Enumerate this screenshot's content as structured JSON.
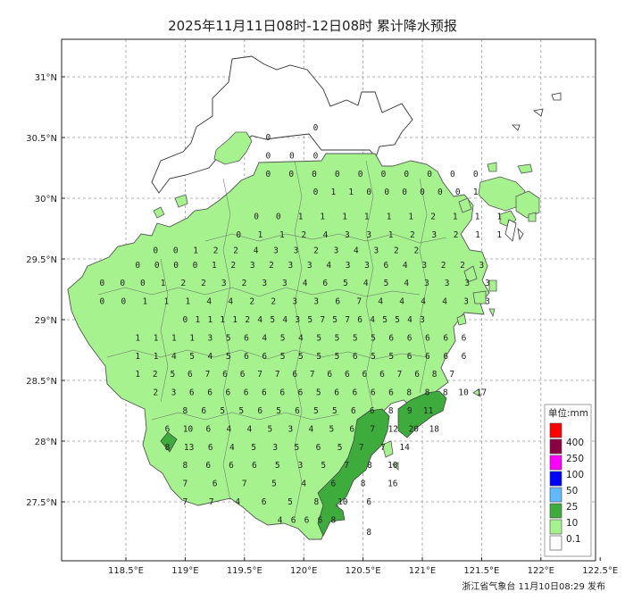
{
  "title": "2025年11月11日08时-12日08时 累计降水预报",
  "footer": "浙江省气象台 11月10日08:29 发布",
  "axes": {
    "lon_ticks": [
      "118.5°E",
      "119°E",
      "119.5°E",
      "120°E",
      "120.5°E",
      "121°E",
      "121.5°E",
      "122°E",
      "122.5°E"
    ],
    "lat_ticks": [
      "31°N",
      "30.5°N",
      "30°N",
      "29.5°N",
      "29°N",
      "28.5°N",
      "28°N",
      "27.5°N"
    ]
  },
  "legend": {
    "unit_label": "单位:mm",
    "items": [
      {
        "label": "400",
        "color": "#ff0000"
      },
      {
        "label": "250",
        "color": "#8b0045"
      },
      {
        "label": "100",
        "color": "#ff00ff"
      },
      {
        "label": "50",
        "color": "#0000ff"
      },
      {
        "label": "25",
        "color": "#63b8ff"
      },
      {
        "label": "10",
        "color": "#3dac3d"
      },
      {
        "label": "0.1",
        "color": "#a6f28f"
      },
      {
        "label": "",
        "color": "#ffffff"
      }
    ]
  },
  "colors": {
    "light_rain": "#a6f28f",
    "moderate_rain": "#3dac3d",
    "border": "#555555"
  },
  "chart_data": {
    "type": "heatmap",
    "description_unit": "mm",
    "grid_rows": [
      {
        "lat": 30.58,
        "values": [
          0
        ]
      },
      {
        "lat": 30.5,
        "values": [
          0
        ]
      },
      {
        "lat": 30.35,
        "values": [
          0,
          0,
          0
        ]
      },
      {
        "lat": 30.2,
        "values": [
          0,
          0,
          0,
          0,
          0,
          0,
          0,
          0,
          0,
          0
        ]
      },
      {
        "lat": 30.05,
        "values": [
          0,
          1,
          1,
          0,
          0,
          0,
          0,
          0,
          0,
          1
        ]
      },
      {
        "lat": 29.85,
        "values": [
          0,
          0,
          1,
          1,
          1,
          1,
          1,
          1,
          2,
          1,
          1,
          1
        ]
      },
      {
        "lat": 29.7,
        "values": [
          0,
          1,
          1,
          2,
          4,
          3,
          3,
          1,
          2,
          3,
          2,
          1,
          1
        ]
      },
      {
        "lat": 29.57,
        "values": [
          0,
          0,
          1,
          2,
          2,
          4,
          3,
          3,
          2,
          3,
          4,
          3,
          2,
          2
        ]
      },
      {
        "lat": 29.45,
        "values": [
          0,
          0,
          0,
          0,
          1,
          2,
          3,
          2,
          3,
          3,
          4,
          3,
          3,
          6,
          4,
          3,
          2,
          2,
          3
        ]
      },
      {
        "lat": 29.3,
        "values": [
          0,
          0,
          0,
          1,
          2,
          2,
          3,
          2,
          3,
          3,
          4,
          6,
          5,
          4,
          5,
          4,
          3,
          3,
          3,
          3
        ]
      },
      {
        "lat": 29.15,
        "values": [
          0,
          0,
          1,
          1,
          1,
          4,
          4,
          2,
          2,
          3,
          3,
          6,
          7,
          4,
          4,
          4,
          4,
          3,
          3
        ]
      },
      {
        "lat": 29.0,
        "values": [
          0,
          1,
          1,
          1,
          1,
          2,
          4,
          5,
          4,
          3,
          5,
          7,
          5,
          7,
          6,
          4,
          5,
          5,
          4,
          3
        ]
      },
      {
        "lat": 28.85,
        "values": [
          1,
          1,
          1,
          1,
          3,
          5,
          6,
          4,
          5,
          4,
          5,
          5,
          5,
          5,
          6,
          6,
          6,
          6,
          6
        ]
      },
      {
        "lat": 28.7,
        "values": [
          1,
          1,
          4,
          5,
          4,
          5,
          6,
          6,
          5,
          5,
          5,
          5,
          6,
          5,
          5,
          6,
          6,
          6,
          6
        ]
      },
      {
        "lat": 28.55,
        "values": [
          1,
          2,
          5,
          6,
          7,
          6,
          6,
          7,
          7,
          6,
          7,
          6,
          6,
          6,
          6,
          7,
          6,
          8,
          7
        ]
      },
      {
        "lat": 28.4,
        "values": [
          2,
          3,
          6,
          6,
          6,
          6,
          6,
          6,
          6,
          5,
          6,
          6,
          6,
          6,
          8,
          8,
          8,
          10,
          17
        ]
      },
      {
        "lat": 28.25,
        "values": [
          8,
          6,
          5,
          5,
          6,
          5,
          6,
          5,
          5,
          6,
          6,
          8,
          9,
          11
        ]
      },
      {
        "lat": 28.1,
        "values": [
          6,
          10,
          6,
          4,
          4,
          5,
          3,
          4,
          5,
          6,
          7,
          12,
          20,
          18
        ]
      },
      {
        "lat": 27.95,
        "values": [
          8,
          13,
          6,
          4,
          5,
          3,
          5,
          6,
          5,
          7,
          7,
          14
        ]
      },
      {
        "lat": 27.8,
        "values": [
          8,
          6,
          6,
          6,
          5,
          3,
          5,
          7,
          8,
          10
        ]
      },
      {
        "lat": 27.65,
        "values": [
          7,
          6,
          7,
          5,
          4,
          6,
          8,
          16
        ]
      },
      {
        "lat": 27.5,
        "values": [
          7,
          7,
          4,
          6,
          5,
          8,
          10,
          6
        ]
      },
      {
        "lat": 27.35,
        "values": [
          4,
          6,
          6,
          6,
          8
        ]
      },
      {
        "lat": 27.25,
        "values": [
          8
        ]
      }
    ]
  }
}
